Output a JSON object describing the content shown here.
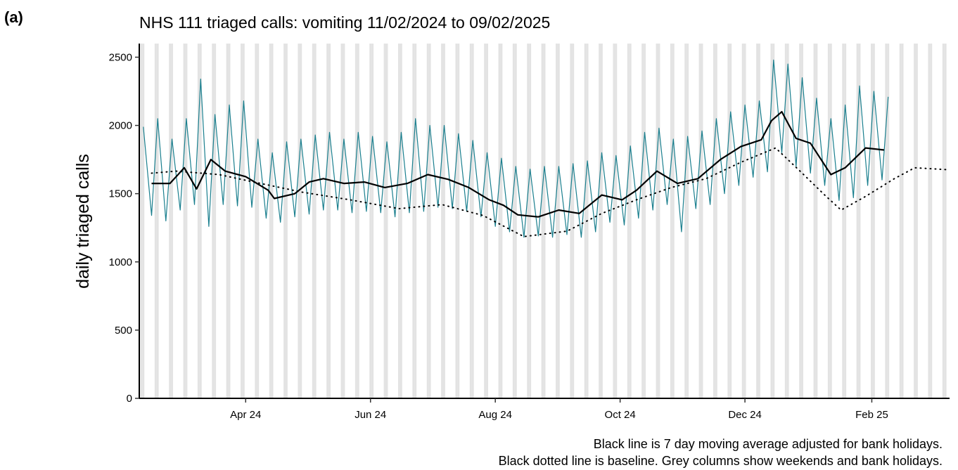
{
  "panel_label": "(a)",
  "chart_data": {
    "type": "line",
    "title": "NHS 111 triaged calls: vomiting 11/02/2024 to 09/02/2025",
    "y_label": "daily triaged calls",
    "notes": [
      "Black line is 7 day moving average adjusted for bank holidays.",
      "Black dotted line is baseline. Grey columns show weekends and bank holidays."
    ],
    "xlim": [
      -2,
      394
    ],
    "xticks": [
      {
        "value": 50,
        "label": "Apr 24"
      },
      {
        "value": 111,
        "label": "Jun 24"
      },
      {
        "value": 172,
        "label": "Aug 24"
      },
      {
        "value": 233,
        "label": "Oct 24"
      },
      {
        "value": 294,
        "label": "Dec 24"
      },
      {
        "value": 356,
        "label": "Feb 25"
      }
    ],
    "ylim": [
      0,
      2600
    ],
    "yticks": [
      0,
      500,
      1000,
      1500,
      2000,
      2500
    ],
    "series": [
      {
        "color": "#1a7f8e",
        "width": 1.2,
        "x": [
          0,
          4,
          7,
          11,
          14,
          18,
          21,
          25,
          28,
          32,
          35,
          39,
          42,
          46,
          49,
          53,
          56,
          60,
          63,
          67,
          70,
          74,
          77,
          81,
          84,
          88,
          91,
          95,
          98,
          102,
          105,
          109,
          112,
          116,
          119,
          123,
          126,
          130,
          133,
          137,
          140,
          144,
          147,
          151,
          154,
          158,
          161,
          165,
          168,
          172,
          175,
          179,
          182,
          186,
          189,
          193,
          196,
          200,
          203,
          207,
          210,
          214,
          217,
          221,
          224,
          228,
          231,
          235,
          238,
          242,
          245,
          249,
          252,
          256,
          259,
          263,
          266,
          270,
          273,
          277,
          280,
          284,
          287,
          291,
          294,
          298,
          301,
          305,
          308,
          312,
          315,
          319,
          322,
          326,
          329,
          333,
          336,
          340,
          343,
          347,
          350,
          354,
          357,
          361,
          364
        ],
        "values": [
          1990,
          1340,
          2050,
          1300,
          1900,
          1380,
          2050,
          1420,
          2340,
          1260,
          2080,
          1420,
          2150,
          1410,
          2180,
          1400,
          1900,
          1320,
          1800,
          1290,
          1880,
          1330,
          1900,
          1350,
          1930,
          1380,
          1950,
          1380,
          1900,
          1360,
          1950,
          1370,
          1920,
          1360,
          1880,
          1330,
          1950,
          1360,
          2050,
          1370,
          2000,
          1400,
          2000,
          1390,
          1940,
          1370,
          1890,
          1330,
          1800,
          1260,
          1760,
          1220,
          1700,
          1180,
          1680,
          1190,
          1700,
          1180,
          1700,
          1200,
          1720,
          1180,
          1740,
          1220,
          1800,
          1290,
          1780,
          1270,
          1850,
          1320,
          1950,
          1380,
          1980,
          1420,
          1900,
          1220,
          1920,
          1390,
          1960,
          1420,
          2050,
          1500,
          2100,
          1560,
          2150,
          1620,
          2180,
          1660,
          2480,
          1800,
          2450,
          1700,
          2350,
          1650,
          2200,
          1560,
          2050,
          1450,
          2150,
          1470,
          2290,
          1560,
          2250,
          1600,
          2210
        ]
      },
      {
        "color": "#000000",
        "width": 2.2,
        "x": [
          4,
          13,
          20,
          26,
          33,
          40,
          50,
          61,
          64,
          74,
          81,
          88,
          98,
          108,
          118,
          129,
          139,
          149,
          159,
          169,
          176,
          183,
          193,
          203,
          213,
          224,
          234,
          241,
          251,
          261,
          271,
          282,
          292,
          302,
          307,
          312,
          319,
          326,
          336,
          343,
          353,
          362
        ],
        "values": [
          1575,
          1575,
          1690,
          1535,
          1750,
          1665,
          1625,
          1525,
          1465,
          1500,
          1585,
          1610,
          1575,
          1585,
          1545,
          1575,
          1640,
          1605,
          1545,
          1455,
          1415,
          1345,
          1330,
          1380,
          1355,
          1490,
          1455,
          1525,
          1665,
          1575,
          1610,
          1750,
          1845,
          1895,
          2035,
          2100,
          1905,
          1870,
          1640,
          1690,
          1835,
          1820
        ]
      },
      {
        "color": "#000000",
        "width": 2,
        "dash": "dotted",
        "x": [
          4,
          16,
          37,
          54,
          78,
          101,
          125,
          146,
          166,
          186,
          207,
          224,
          241,
          258,
          275,
          292,
          309,
          322,
          333,
          341,
          353,
          367,
          377,
          394
        ],
        "values": [
          1650,
          1665,
          1640,
          1585,
          1510,
          1455,
          1390,
          1420,
          1340,
          1185,
          1225,
          1355,
          1455,
          1545,
          1610,
          1730,
          1835,
          1650,
          1490,
          1380,
          1480,
          1610,
          1690,
          1675
        ]
      }
    ],
    "weekend_columns": true
  }
}
